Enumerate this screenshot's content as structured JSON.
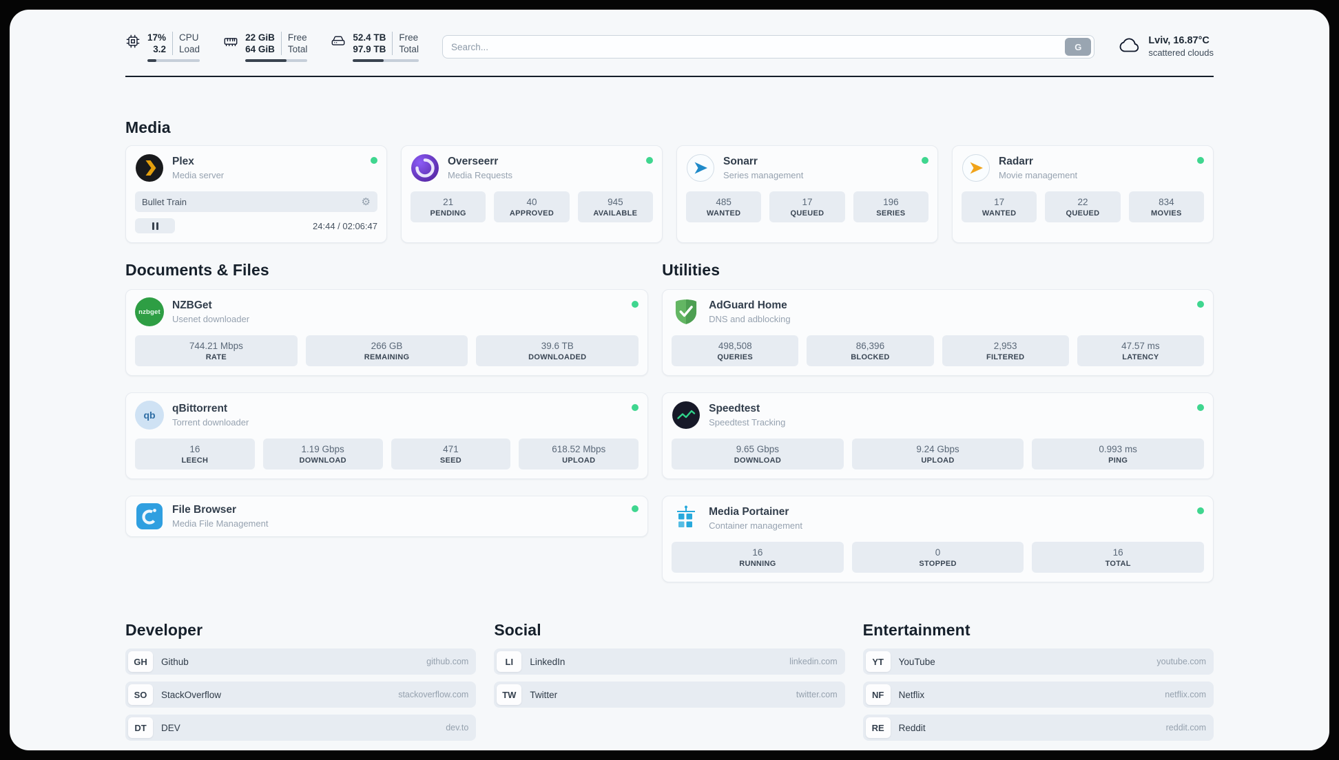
{
  "header": {
    "cpu": {
      "value_top": "17%",
      "value_bottom": "3.2",
      "label_top": "CPU",
      "label_bottom": "Load",
      "progress_pct": 17
    },
    "memory": {
      "value_top": "22 GiB",
      "value_bottom": "64 GiB",
      "label_top": "Free",
      "label_bottom": "Total",
      "progress_pct": 66
    },
    "disk": {
      "value_top": "52.4 TB",
      "value_bottom": "97.9 TB",
      "label_top": "Free",
      "label_bottom": "Total",
      "progress_pct": 47
    },
    "search": {
      "placeholder": "Search...",
      "button_label": "G"
    },
    "weather": {
      "location": "Lviv, 16.87°C",
      "condition": "scattered clouds"
    }
  },
  "media": {
    "title": "Media",
    "plex": {
      "name": "Plex",
      "subtitle": "Media server",
      "now_playing": "Bullet Train",
      "time": "24:44 / 02:06:47"
    },
    "overseerr": {
      "name": "Overseerr",
      "subtitle": "Media Requests",
      "stats": [
        {
          "value": "21",
          "label": "PENDING"
        },
        {
          "value": "40",
          "label": "APPROVED"
        },
        {
          "value": "945",
          "label": "AVAILABLE"
        }
      ]
    },
    "sonarr": {
      "name": "Sonarr",
      "subtitle": "Series management",
      "stats": [
        {
          "value": "485",
          "label": "WANTED"
        },
        {
          "value": "17",
          "label": "QUEUED"
        },
        {
          "value": "196",
          "label": "SERIES"
        }
      ]
    },
    "radarr": {
      "name": "Radarr",
      "subtitle": "Movie management",
      "stats": [
        {
          "value": "17",
          "label": "WANTED"
        },
        {
          "value": "22",
          "label": "QUEUED"
        },
        {
          "value": "834",
          "label": "MOVIES"
        }
      ]
    }
  },
  "documents": {
    "title": "Documents & Files",
    "nzbget": {
      "name": "NZBGet",
      "subtitle": "Usenet downloader",
      "icon_text": "nzbget",
      "stats": [
        {
          "value": "744.21 Mbps",
          "label": "RATE"
        },
        {
          "value": "266 GB",
          "label": "REMAINING"
        },
        {
          "value": "39.6 TB",
          "label": "DOWNLOADED"
        }
      ]
    },
    "qbittorrent": {
      "name": "qBittorrent",
      "subtitle": "Torrent downloader",
      "icon_text": "qb",
      "stats": [
        {
          "value": "16",
          "label": "LEECH"
        },
        {
          "value": "1.19 Gbps",
          "label": "DOWNLOAD"
        },
        {
          "value": "471",
          "label": "SEED"
        },
        {
          "value": "618.52 Mbps",
          "label": "UPLOAD"
        }
      ]
    },
    "filebrowser": {
      "name": "File Browser",
      "subtitle": "Media File Management"
    }
  },
  "utilities": {
    "title": "Utilities",
    "adguard": {
      "name": "AdGuard Home",
      "subtitle": "DNS and adblocking",
      "stats": [
        {
          "value": "498,508",
          "label": "QUERIES"
        },
        {
          "value": "86,396",
          "label": "BLOCKED"
        },
        {
          "value": "2,953",
          "label": "FILTERED"
        },
        {
          "value": "47.57 ms",
          "label": "LATENCY"
        }
      ]
    },
    "speedtest": {
      "name": "Speedtest",
      "subtitle": "Speedtest Tracking",
      "stats": [
        {
          "value": "9.65 Gbps",
          "label": "DOWNLOAD"
        },
        {
          "value": "9.24 Gbps",
          "label": "UPLOAD"
        },
        {
          "value": "0.993 ms",
          "label": "PING"
        }
      ]
    },
    "portainer": {
      "name": "Media Portainer",
      "subtitle": "Container management",
      "stats": [
        {
          "value": "16",
          "label": "RUNNING"
        },
        {
          "value": "0",
          "label": "STOPPED"
        },
        {
          "value": "16",
          "label": "TOTAL"
        }
      ]
    }
  },
  "bookmarks": {
    "developer": {
      "title": "Developer",
      "items": [
        {
          "abbr": "GH",
          "name": "Github",
          "url": "github.com"
        },
        {
          "abbr": "SO",
          "name": "StackOverflow",
          "url": "stackoverflow.com"
        },
        {
          "abbr": "DT",
          "name": "DEV",
          "url": "dev.to"
        }
      ]
    },
    "social": {
      "title": "Social",
      "items": [
        {
          "abbr": "LI",
          "name": "LinkedIn",
          "url": "linkedin.com"
        },
        {
          "abbr": "TW",
          "name": "Twitter",
          "url": "twitter.com"
        }
      ]
    },
    "entertainment": {
      "title": "Entertainment",
      "items": [
        {
          "abbr": "YT",
          "name": "YouTube",
          "url": "youtube.com"
        },
        {
          "abbr": "NF",
          "name": "Netflix",
          "url": "netflix.com"
        },
        {
          "abbr": "RE",
          "name": "Reddit",
          "url": "reddit.com"
        }
      ]
    }
  }
}
